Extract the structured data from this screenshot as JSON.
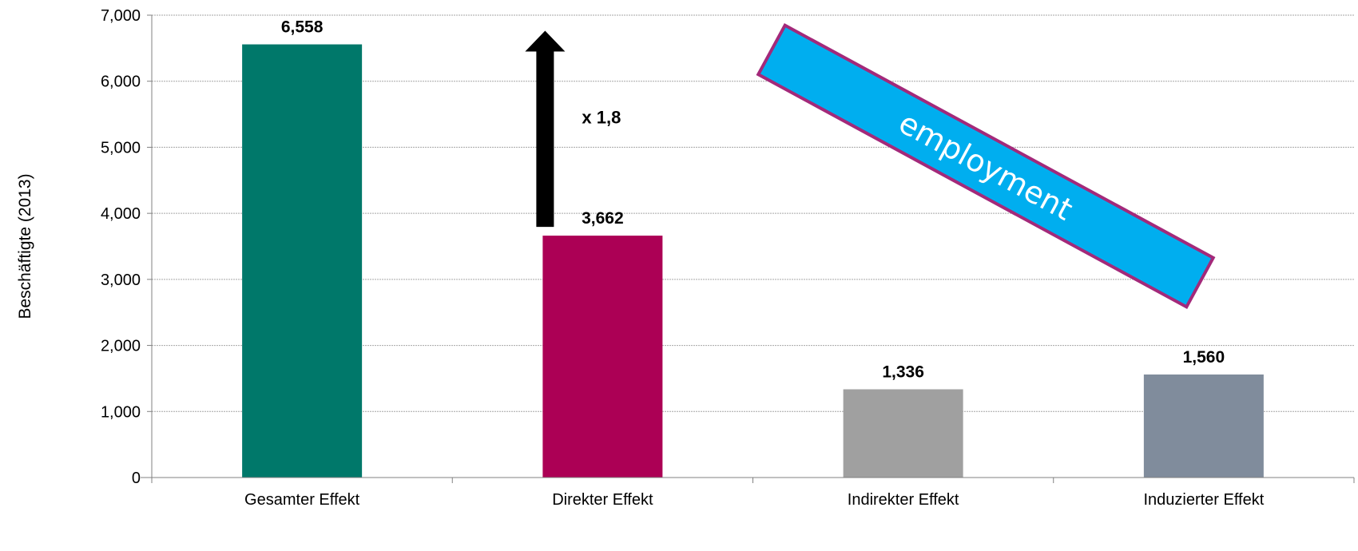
{
  "chart_data": {
    "type": "bar",
    "categories": [
      "Gesamter Effekt",
      "Direkter Effekt",
      "Indirekter Effekt",
      "Induzierter Effekt"
    ],
    "values": [
      6558,
      3662,
      1336,
      1560
    ],
    "value_labels": [
      "6,558",
      "3,662",
      "1,336",
      "1,560"
    ],
    "colors": [
      "#00786A",
      "#AC0055",
      "#A0A0A0",
      "#808C9C"
    ],
    "xlabel": "",
    "ylabel": "Beschäftigte (2013)",
    "ylim": [
      0,
      7000
    ],
    "yticks": [
      0,
      1000,
      2000,
      3000,
      4000,
      5000,
      6000,
      7000
    ],
    "ytick_labels": [
      "0",
      "1,000",
      "2,000",
      "3,000",
      "4,000",
      "5,000",
      "6,000",
      "7,000"
    ],
    "grid": true,
    "legend": "none",
    "annotations": {
      "multiplier": {
        "text": "x 1,8",
        "from_value": 3662,
        "to_value": 6558,
        "category": "Direkter Effekt",
        "color": "#000000"
      },
      "banner": {
        "text": "employment",
        "fill": "#00AEEF",
        "border": "#A3297A"
      }
    }
  }
}
